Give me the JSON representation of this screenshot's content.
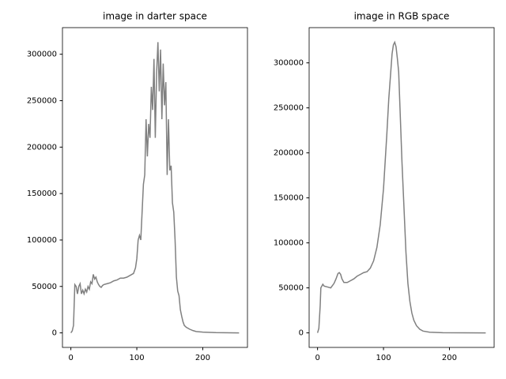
{
  "chart_data": [
    {
      "type": "line",
      "title": "image in darter space",
      "x": [
        0,
        2,
        4,
        5,
        6,
        8,
        10,
        12,
        14,
        16,
        18,
        20,
        22,
        24,
        26,
        28,
        30,
        32,
        34,
        36,
        38,
        40,
        42,
        44,
        46,
        48,
        50,
        55,
        60,
        65,
        70,
        75,
        80,
        85,
        90,
        95,
        98,
        100,
        102,
        104,
        106,
        108,
        110,
        112,
        114,
        116,
        118,
        120,
        122,
        124,
        126,
        128,
        130,
        132,
        134,
        136,
        138,
        140,
        142,
        144,
        146,
        148,
        150,
        152,
        154,
        156,
        158,
        160,
        162,
        164,
        166,
        168,
        170,
        172,
        175,
        180,
        185,
        190,
        200,
        220,
        255
      ],
      "series": [
        {
          "color": "#808080",
          "values": [
            0,
            2000,
            8000,
            30000,
            52000,
            50000,
            42000,
            50000,
            53000,
            42000,
            46000,
            42000,
            47000,
            44000,
            50000,
            47000,
            55000,
            53000,
            63000,
            58000,
            60000,
            55000,
            52000,
            50000,
            49000,
            51000,
            52000,
            53000,
            54000,
            56000,
            57000,
            59000,
            59000,
            60000,
            62000,
            64000,
            70000,
            80000,
            100000,
            105000,
            100000,
            130000,
            160000,
            170000,
            230000,
            190000,
            225000,
            210000,
            265000,
            240000,
            295000,
            210000,
            280000,
            313000,
            260000,
            305000,
            230000,
            290000,
            245000,
            270000,
            170000,
            230000,
            175000,
            180000,
            140000,
            130000,
            100000,
            60000,
            45000,
            40000,
            25000,
            18000,
            12000,
            8000,
            6000,
            4000,
            2500,
            1500,
            800,
            300,
            0
          ]
        }
      ],
      "xlim": [
        -12.75,
        267.75
      ],
      "xticks": [
        0,
        100,
        200
      ],
      "ylim": [
        -15650,
        328650
      ],
      "yticks": [
        0,
        50000,
        100000,
        150000,
        200000,
        250000,
        300000
      ]
    },
    {
      "type": "line",
      "title": "image in RGB space",
      "x": [
        0,
        2,
        4,
        5,
        8,
        10,
        15,
        20,
        25,
        28,
        31,
        33,
        35,
        37,
        40,
        45,
        50,
        55,
        60,
        65,
        70,
        75,
        80,
        85,
        90,
        95,
        100,
        105,
        108,
        111,
        113,
        115,
        117,
        119,
        121,
        123,
        125,
        128,
        131,
        134,
        137,
        140,
        143,
        146,
        150,
        155,
        160,
        170,
        190,
        255
      ],
      "series": [
        {
          "color": "#808080",
          "values": [
            0,
            5000,
            30000,
            50000,
            54000,
            52000,
            51000,
            50000,
            55000,
            60000,
            66000,
            67000,
            65000,
            60000,
            56000,
            56000,
            58000,
            60000,
            63000,
            65000,
            67000,
            68000,
            72000,
            80000,
            95000,
            120000,
            160000,
            220000,
            260000,
            290000,
            310000,
            320000,
            323000,
            318000,
            305000,
            290000,
            250000,
            190000,
            140000,
            90000,
            55000,
            35000,
            22000,
            14000,
            8000,
            4000,
            2000,
            700,
            200,
            0
          ]
        }
      ],
      "xlim": [
        -12.75,
        267.75
      ],
      "xticks": [
        0,
        100,
        200
      ],
      "ylim": [
        -16150,
        339150
      ],
      "yticks": [
        0,
        50000,
        100000,
        150000,
        200000,
        250000,
        300000
      ]
    }
  ]
}
